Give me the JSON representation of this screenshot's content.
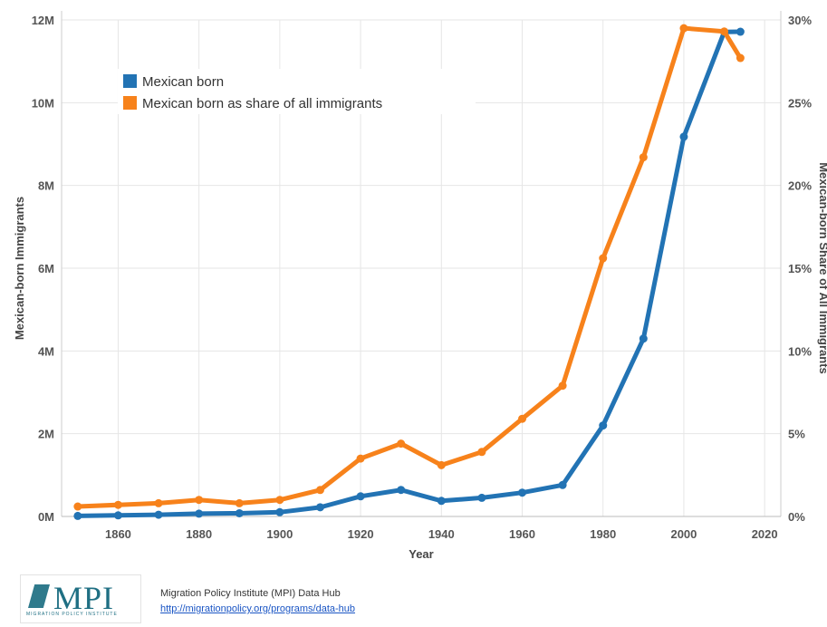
{
  "chart_data": {
    "type": "line",
    "xlabel": "Year",
    "ylabel": "Mexican-born Immigrants",
    "y2label": "Mexican-born Share of All Immigrants",
    "xlim": [
      1846,
      2024
    ],
    "ylim": [
      0,
      12000000
    ],
    "y2lim": [
      0,
      30
    ],
    "x_ticks": [
      1860,
      1880,
      1900,
      1920,
      1940,
      1960,
      1980,
      2000,
      2020
    ],
    "y_ticks": [
      {
        "value": 0,
        "label": "0M"
      },
      {
        "value": 2000000,
        "label": "2M"
      },
      {
        "value": 4000000,
        "label": "4M"
      },
      {
        "value": 6000000,
        "label": "6M"
      },
      {
        "value": 8000000,
        "label": "8M"
      },
      {
        "value": 10000000,
        "label": "10M"
      },
      {
        "value": 12000000,
        "label": "12M"
      }
    ],
    "y2_ticks": [
      {
        "value": 0,
        "label": "0%"
      },
      {
        "value": 5,
        "label": "5%"
      },
      {
        "value": 10,
        "label": "10%"
      },
      {
        "value": 15,
        "label": "15%"
      },
      {
        "value": 20,
        "label": "20%"
      },
      {
        "value": 25,
        "label": "25%"
      },
      {
        "value": 30,
        "label": "30%"
      }
    ],
    "grid": true,
    "legend_position": "top-left",
    "series": [
      {
        "name": "Mexican born",
        "axis": "left",
        "color": "#2273b4",
        "x": [
          1850,
          1860,
          1870,
          1880,
          1890,
          1900,
          1910,
          1920,
          1930,
          1940,
          1950,
          1960,
          1970,
          1980,
          1990,
          2000,
          2010,
          2014
        ],
        "y": [
          13000,
          27000,
          42000,
          68000,
          78000,
          103000,
          222000,
          486000,
          641000,
          377000,
          451000,
          576000,
          760000,
          2199000,
          4298000,
          9177000,
          11711000,
          11714000
        ]
      },
      {
        "name": "Mexican born as share of all immigrants",
        "axis": "right",
        "color": "#f7821b",
        "x": [
          1850,
          1860,
          1870,
          1880,
          1890,
          1900,
          1910,
          1920,
          1930,
          1940,
          1950,
          1960,
          1970,
          1980,
          1990,
          2000,
          2010,
          2014
        ],
        "y": [
          0.6,
          0.7,
          0.8,
          1.0,
          0.8,
          1.0,
          1.6,
          3.5,
          4.4,
          3.1,
          3.9,
          5.9,
          7.9,
          15.6,
          21.7,
          29.5,
          29.3,
          27.7
        ]
      }
    ]
  },
  "footer": {
    "logo_text": "MPI",
    "logo_subtext": "MIGRATION POLICY INSTITUTE",
    "source_title": "Migration Policy Institute (MPI) Data Hub",
    "source_url": "http://migrationpolicy.org/programs/data-hub"
  }
}
